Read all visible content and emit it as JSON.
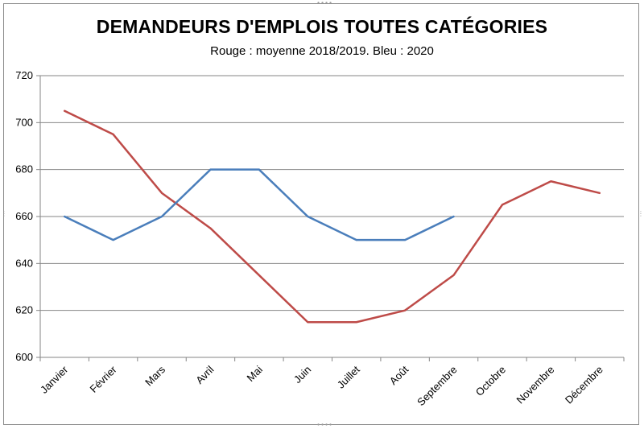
{
  "chart_data": {
    "type": "line",
    "title": "DEMANDEURS D'EMPLOIS TOUTES CATÉGORIES",
    "subtitle": "Rouge : moyenne 2018/2019. Bleu : 2020",
    "categories": [
      "Janvier",
      "Février",
      "Mars",
      "Avril",
      "Mai",
      "Juin",
      "Juillet",
      "Août",
      "Septembre",
      "Octobre",
      "Novembre",
      "Décembre"
    ],
    "series": [
      {
        "color": "#be4b48",
        "values": [
          705,
          695,
          670,
          655,
          635,
          615,
          615,
          620,
          635,
          665,
          675,
          670
        ]
      },
      {
        "color": "#4a7ebb",
        "values": [
          660,
          650,
          660,
          680,
          680,
          660,
          650,
          650,
          660,
          null,
          null,
          null
        ]
      }
    ],
    "ylim": [
      600,
      720
    ],
    "yticks": [
      600,
      620,
      640,
      660,
      680,
      700,
      720
    ],
    "grid": true,
    "legend": "none"
  }
}
